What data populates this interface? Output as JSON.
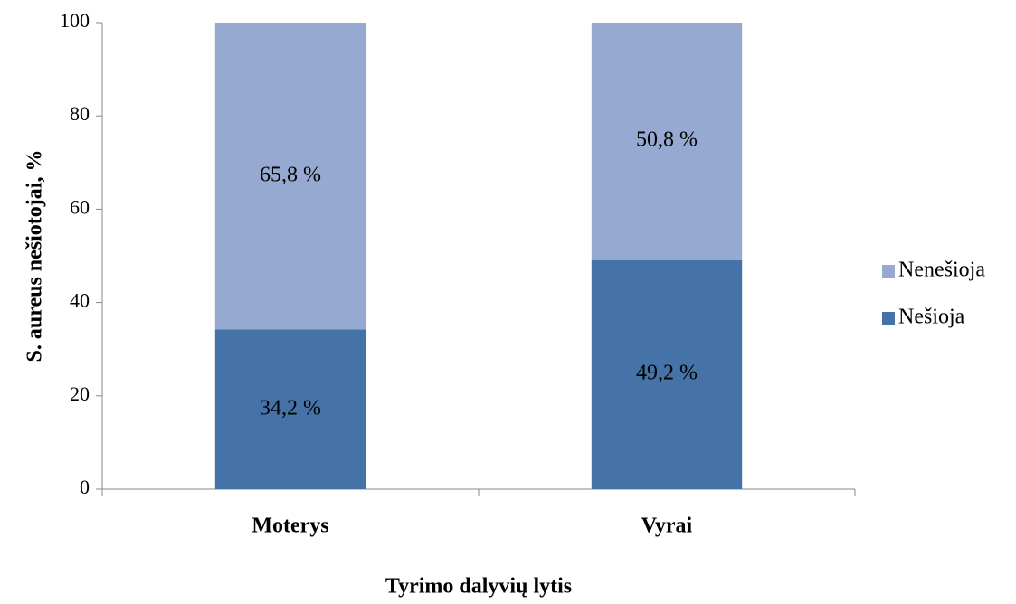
{
  "chart_data": {
    "type": "stacked_bar",
    "xlabel": "Tyrimo dalyvių lytis",
    "ylabel": "S. aureus nešiotojai, %",
    "categories": [
      "Moterys",
      "Vyrai"
    ],
    "series": [
      {
        "name": "Nešioja",
        "color": "#4572a7",
        "values": [
          34.2,
          49.2
        ],
        "value_labels": [
          "34,2 %",
          "49,2 %"
        ]
      },
      {
        "name": "Nenešioja",
        "color": "#95a9d1",
        "values": [
          65.8,
          50.8
        ],
        "value_labels": [
          "65,8 %",
          "50,8 %"
        ]
      }
    ],
    "ylim": [
      0,
      100
    ],
    "yticks": [
      0,
      20,
      40,
      60,
      80,
      100
    ],
    "grid": false,
    "legend": "right"
  }
}
